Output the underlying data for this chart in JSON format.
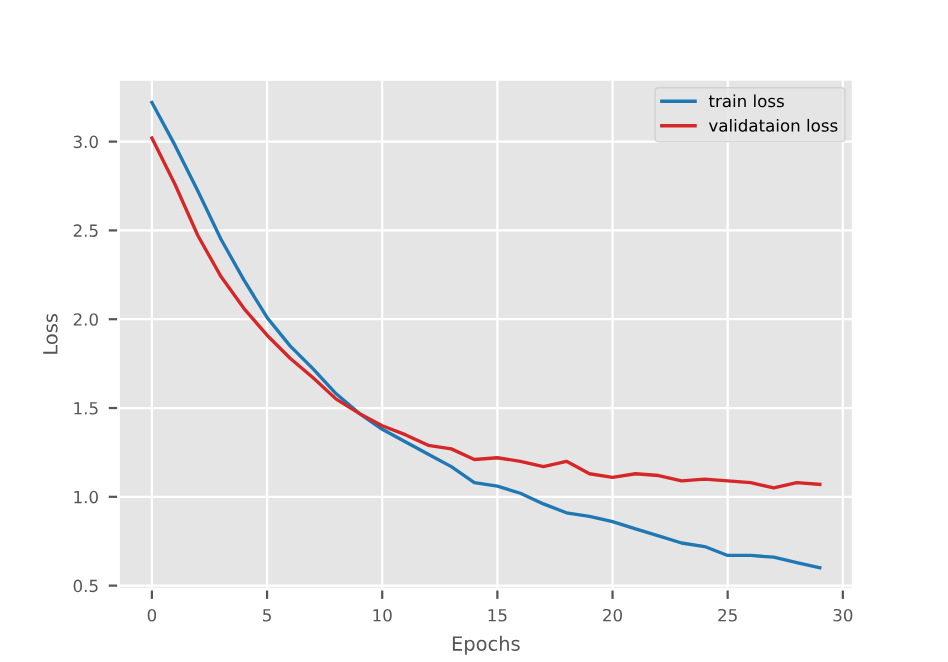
{
  "chart_data": {
    "type": "line",
    "xlabel": "Epochs",
    "ylabel": "Loss",
    "x": [
      0,
      1,
      2,
      3,
      4,
      5,
      6,
      7,
      8,
      9,
      10,
      11,
      12,
      13,
      14,
      15,
      16,
      17,
      18,
      19,
      20,
      21,
      22,
      23,
      24,
      25,
      26,
      27,
      28,
      29
    ],
    "series": [
      {
        "name": "train loss",
        "color": "#1f77b4",
        "values": [
          3.22,
          2.98,
          2.72,
          2.45,
          2.22,
          2.01,
          1.85,
          1.72,
          1.58,
          1.47,
          1.38,
          1.31,
          1.24,
          1.17,
          1.08,
          1.06,
          1.02,
          0.96,
          0.91,
          0.89,
          0.86,
          0.82,
          0.78,
          0.74,
          0.72,
          0.67,
          0.67,
          0.66,
          0.63,
          0.6
        ]
      },
      {
        "name": "validataion loss",
        "color": "#d62728",
        "values": [
          3.02,
          2.76,
          2.47,
          2.24,
          2.06,
          1.91,
          1.78,
          1.67,
          1.55,
          1.47,
          1.4,
          1.35,
          1.29,
          1.27,
          1.21,
          1.22,
          1.2,
          1.17,
          1.2,
          1.13,
          1.11,
          1.13,
          1.12,
          1.09,
          1.1,
          1.09,
          1.08,
          1.05,
          1.08,
          1.07
        ]
      }
    ],
    "xlim": [
      -1.45,
      30.45
    ],
    "ylim": [
      0.48,
      3.35
    ],
    "xticks": [
      0,
      5,
      10,
      15,
      20,
      25,
      30
    ],
    "yticks": [
      0.5,
      {
        "value": 1,
        "label": "1.0"
      },
      1.5,
      {
        "value": 2,
        "label": "2.0"
      },
      2.5,
      {
        "value": 3,
        "label": "3.0"
      }
    ],
    "grid": true,
    "legend": "top right"
  }
}
